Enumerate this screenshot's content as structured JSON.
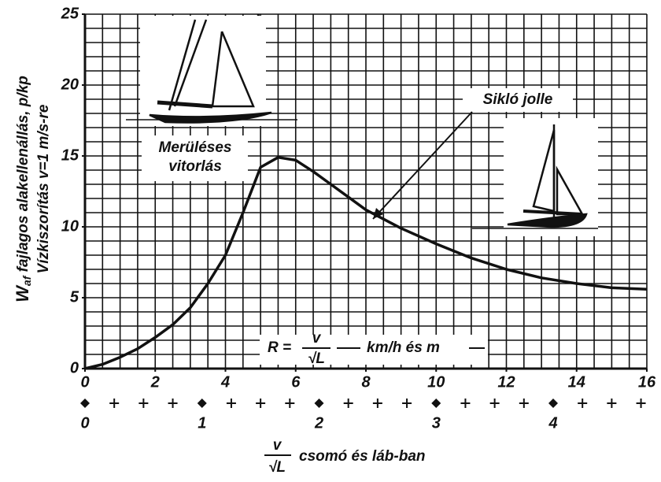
{
  "chart_data": {
    "type": "line",
    "x": [
      0,
      0.5,
      1,
      1.5,
      2,
      2.5,
      3,
      3.5,
      4,
      4.5,
      5,
      5.5,
      6,
      6.5,
      7,
      7.5,
      8,
      9,
      10,
      11,
      12,
      13,
      14,
      15,
      16
    ],
    "series": [
      {
        "color": "#111111",
        "values": [
          0,
          0.3,
          0.8,
          1.4,
          2.2,
          3.1,
          4.3,
          6.0,
          8.0,
          11.0,
          14.2,
          14.9,
          14.7,
          13.9,
          13.0,
          12.1,
          11.2,
          9.9,
          8.8,
          7.8,
          7.0,
          6.4,
          6.0,
          5.7,
          5.6
        ]
      }
    ],
    "xlim": [
      0,
      16
    ],
    "ylim": [
      0,
      25
    ],
    "xticks": [
      0,
      2,
      4,
      6,
      8,
      10,
      12,
      14,
      16
    ],
    "yticks": [
      0,
      5,
      10,
      15,
      20,
      25
    ],
    "xgrid": [
      0,
      0.5,
      1,
      1.5,
      2,
      2.5,
      3,
      3.5,
      4,
      4.5,
      5,
      5.5,
      6,
      6.5,
      7,
      7.5,
      8,
      8.5,
      9,
      9.5,
      10,
      10.5,
      11,
      11.5,
      12,
      12.5,
      13,
      13.5,
      14,
      14.5,
      15,
      15.5,
      16
    ],
    "ygrid": [
      0,
      1,
      2,
      3,
      4,
      5,
      6,
      7,
      8,
      9,
      10,
      11,
      12,
      13,
      14,
      15,
      16,
      17,
      18,
      19,
      20,
      21,
      22,
      23,
      24,
      25
    ],
    "grid": true,
    "x2lim": [
      0,
      4.8
    ],
    "x2ticks": [
      0,
      1,
      2,
      3,
      4
    ],
    "x2minorticks": [
      0.25,
      0.5,
      0.75,
      1.25,
      1.5,
      1.75,
      2.25,
      2.5,
      2.75,
      3.25,
      3.5,
      3.75,
      4.25,
      4.5,
      4.75
    ],
    "ylabel": {
      "symbol": "W",
      "subscript": "af",
      "text": " fajlagos alakellenállás, p/kp"
    },
    "ylabel2": "Vízkiszorítás v=1 m/s-re",
    "xlabel": {
      "numerator": "v",
      "denominator": "√L",
      "text": "csomó és láb-ban"
    },
    "formula": {
      "lhs": "R =",
      "numerator": "v",
      "denominator": "√L",
      "text": "km/h  és  m"
    },
    "annotations": {
      "displacement": [
        "Merüléses",
        "vitorlás"
      ],
      "planing": "Sikló jolle"
    }
  }
}
